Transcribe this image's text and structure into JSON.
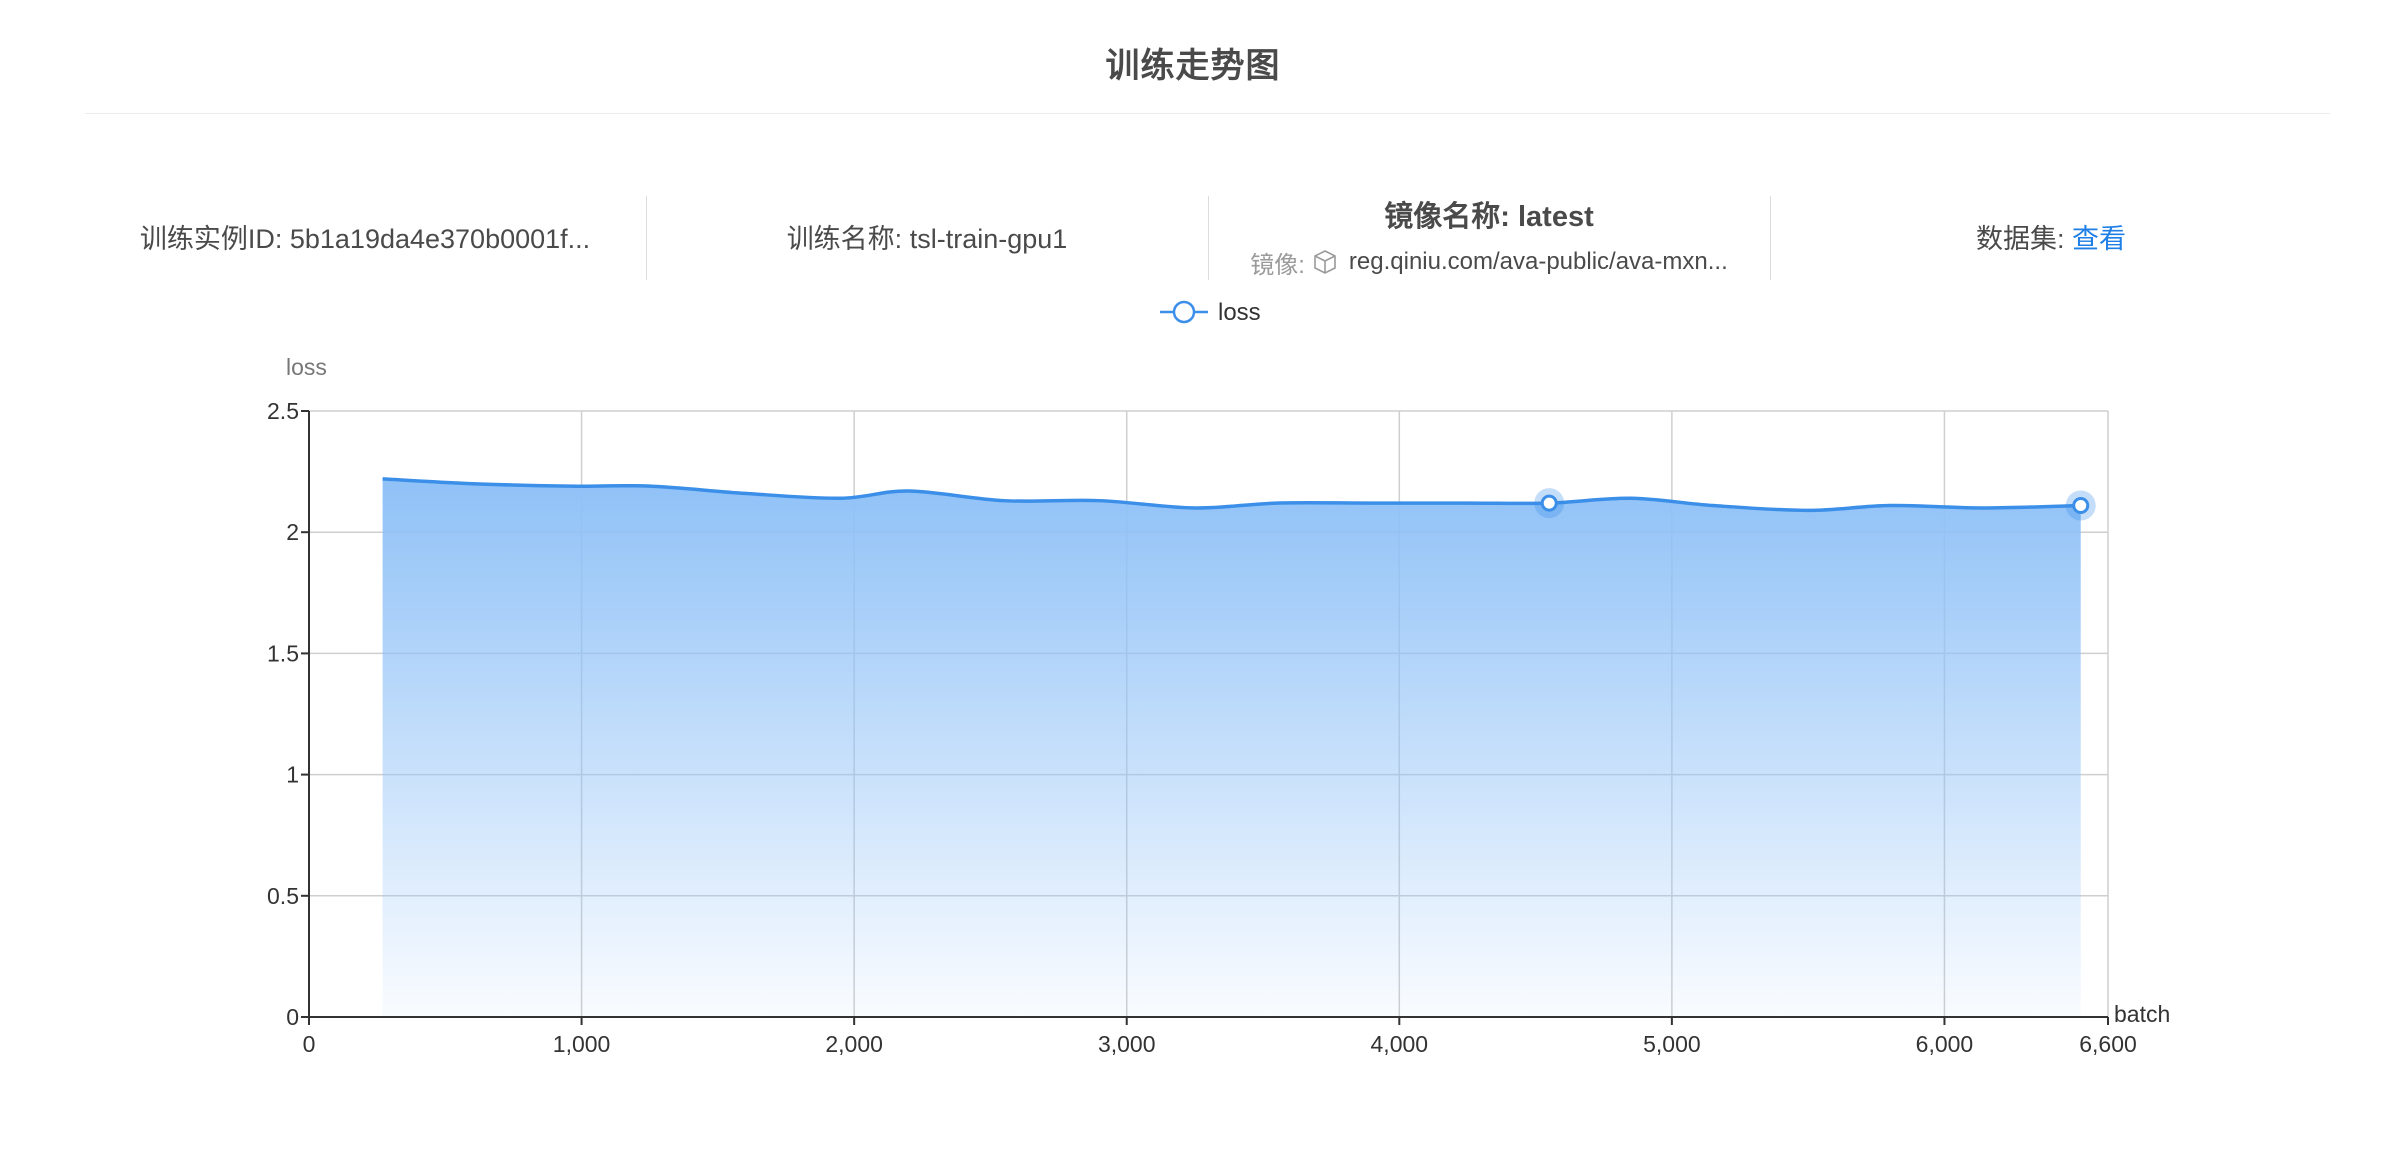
{
  "page": {
    "title": "训练走势图"
  },
  "info": {
    "instance_label": "训练实例ID:",
    "instance_value": "5b1a19da4e370b0001f...",
    "name_label": "训练名称:",
    "name_value": "tsl-train-gpu1",
    "image_name_label": "镜像名称:",
    "image_name_value": "latest",
    "image_label": "镜像:",
    "image_value": "reg.qiniu.com/ava-public/ava-mxn...",
    "dataset_label": "数据集:",
    "dataset_link": "查看",
    "accent_color": "#1f7fe6",
    "icons": [
      "cube-icon"
    ]
  },
  "chart_data": {
    "type": "area",
    "title": "",
    "legend": [
      "loss"
    ],
    "legend_position": "top-center",
    "xlabel": "batch",
    "ylabel": "loss",
    "xlim": [
      0,
      6600
    ],
    "ylim": [
      0,
      2.5
    ],
    "x_ticks": [
      0,
      1000,
      2000,
      3000,
      4000,
      5000,
      6000,
      6600
    ],
    "x_tick_labels": [
      "0",
      "1,000",
      "2,000",
      "3,000",
      "4,000",
      "5,000",
      "6,000",
      "6,600"
    ],
    "y_ticks": [
      0,
      0.5,
      1,
      1.5,
      2,
      2.5
    ],
    "y_tick_labels": [
      "0",
      "0.5",
      "1",
      "1.5",
      "2",
      "2.5"
    ],
    "grid": true,
    "line_color": "#3b8fe8",
    "fill_color": "#8fc1f7",
    "series": [
      {
        "name": "loss",
        "x": [
          270,
          600,
          950,
          1250,
          1600,
          1950,
          2200,
          2550,
          2900,
          3250,
          3550,
          3900,
          4250,
          4550,
          4850,
          5150,
          5500,
          5800,
          6150,
          6500
        ],
        "y": [
          2.22,
          2.2,
          2.19,
          2.19,
          2.16,
          2.14,
          2.17,
          2.13,
          2.13,
          2.1,
          2.12,
          2.12,
          2.12,
          2.12,
          2.14,
          2.11,
          2.09,
          2.11,
          2.1,
          2.11
        ],
        "highlight_points": [
          {
            "x": 4550,
            "y": 2.12
          },
          {
            "x": 6500,
            "y": 2.11
          }
        ]
      }
    ]
  }
}
